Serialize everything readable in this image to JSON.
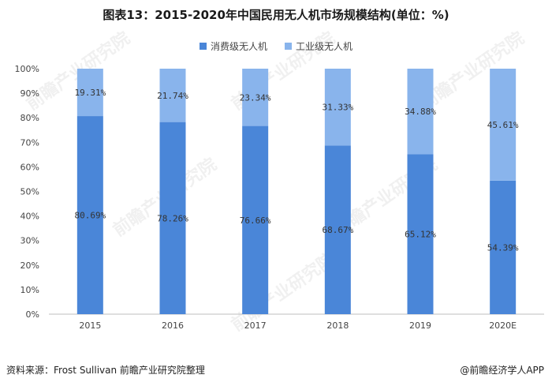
{
  "title": "图表13：2015-2020年中国民用无人机市场规模结构(单位：%)",
  "source": "资料来源：Frost Sullivan 前瞻产业研究院整理",
  "brand": "@前瞻经济学人APP",
  "watermark": "前瞻产业研究院",
  "colors": {
    "consumer": "#4a86d8",
    "industrial": "#89b4ec",
    "axis": "#bfbfbf",
    "text": "#444444",
    "label": "#333333"
  },
  "chart_data": {
    "type": "bar",
    "stacked": true,
    "categories": [
      "2015",
      "2016",
      "2017",
      "2018",
      "2019",
      "2020E"
    ],
    "series": [
      {
        "name": "消费级无人机",
        "values": [
          80.69,
          78.26,
          76.66,
          68.67,
          65.12,
          54.39
        ],
        "labels": [
          "80.69%",
          "78.26%",
          "76.66%",
          "68.67%",
          "65.12%",
          "54.39%"
        ]
      },
      {
        "name": "工业级无人机",
        "values": [
          19.31,
          21.74,
          23.34,
          31.33,
          34.88,
          45.61
        ],
        "labels": [
          "19.31%",
          "21.74%",
          "23.34%",
          "31.33%",
          "34.88%",
          "45.61%"
        ]
      }
    ],
    "yticks": [
      "0%",
      "10%",
      "20%",
      "30%",
      "40%",
      "50%",
      "60%",
      "70%",
      "80%",
      "90%",
      "100%"
    ],
    "ylim": [
      0,
      100
    ],
    "legend_position": "top-center",
    "grid": false
  }
}
